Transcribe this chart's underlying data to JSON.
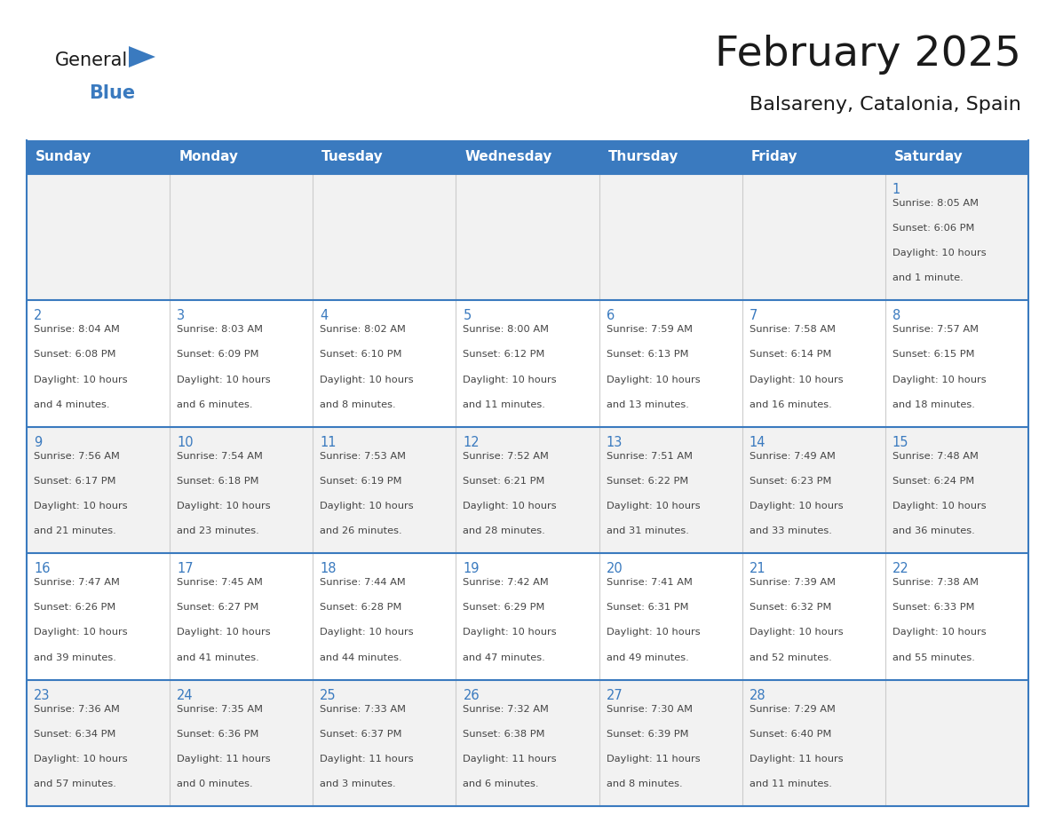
{
  "title": "February 2025",
  "subtitle": "Balsareny, Catalonia, Spain",
  "days_of_week": [
    "Sunday",
    "Monday",
    "Tuesday",
    "Wednesday",
    "Thursday",
    "Friday",
    "Saturday"
  ],
  "header_bg_color": "#3a7abf",
  "header_text_color": "#ffffff",
  "border_color": "#3a7abf",
  "row_border_color": "#4a90d0",
  "day_num_color": "#3a7abf",
  "text_color": "#444444",
  "title_color": "#1a1a1a",
  "weeks": [
    [
      {
        "day": null,
        "info": null
      },
      {
        "day": null,
        "info": null
      },
      {
        "day": null,
        "info": null
      },
      {
        "day": null,
        "info": null
      },
      {
        "day": null,
        "info": null
      },
      {
        "day": null,
        "info": null
      },
      {
        "day": 1,
        "info": "Sunrise: 8:05 AM\nSunset: 6:06 PM\nDaylight: 10 hours\nand 1 minute."
      }
    ],
    [
      {
        "day": 2,
        "info": "Sunrise: 8:04 AM\nSunset: 6:08 PM\nDaylight: 10 hours\nand 4 minutes."
      },
      {
        "day": 3,
        "info": "Sunrise: 8:03 AM\nSunset: 6:09 PM\nDaylight: 10 hours\nand 6 minutes."
      },
      {
        "day": 4,
        "info": "Sunrise: 8:02 AM\nSunset: 6:10 PM\nDaylight: 10 hours\nand 8 minutes."
      },
      {
        "day": 5,
        "info": "Sunrise: 8:00 AM\nSunset: 6:12 PM\nDaylight: 10 hours\nand 11 minutes."
      },
      {
        "day": 6,
        "info": "Sunrise: 7:59 AM\nSunset: 6:13 PM\nDaylight: 10 hours\nand 13 minutes."
      },
      {
        "day": 7,
        "info": "Sunrise: 7:58 AM\nSunset: 6:14 PM\nDaylight: 10 hours\nand 16 minutes."
      },
      {
        "day": 8,
        "info": "Sunrise: 7:57 AM\nSunset: 6:15 PM\nDaylight: 10 hours\nand 18 minutes."
      }
    ],
    [
      {
        "day": 9,
        "info": "Sunrise: 7:56 AM\nSunset: 6:17 PM\nDaylight: 10 hours\nand 21 minutes."
      },
      {
        "day": 10,
        "info": "Sunrise: 7:54 AM\nSunset: 6:18 PM\nDaylight: 10 hours\nand 23 minutes."
      },
      {
        "day": 11,
        "info": "Sunrise: 7:53 AM\nSunset: 6:19 PM\nDaylight: 10 hours\nand 26 minutes."
      },
      {
        "day": 12,
        "info": "Sunrise: 7:52 AM\nSunset: 6:21 PM\nDaylight: 10 hours\nand 28 minutes."
      },
      {
        "day": 13,
        "info": "Sunrise: 7:51 AM\nSunset: 6:22 PM\nDaylight: 10 hours\nand 31 minutes."
      },
      {
        "day": 14,
        "info": "Sunrise: 7:49 AM\nSunset: 6:23 PM\nDaylight: 10 hours\nand 33 minutes."
      },
      {
        "day": 15,
        "info": "Sunrise: 7:48 AM\nSunset: 6:24 PM\nDaylight: 10 hours\nand 36 minutes."
      }
    ],
    [
      {
        "day": 16,
        "info": "Sunrise: 7:47 AM\nSunset: 6:26 PM\nDaylight: 10 hours\nand 39 minutes."
      },
      {
        "day": 17,
        "info": "Sunrise: 7:45 AM\nSunset: 6:27 PM\nDaylight: 10 hours\nand 41 minutes."
      },
      {
        "day": 18,
        "info": "Sunrise: 7:44 AM\nSunset: 6:28 PM\nDaylight: 10 hours\nand 44 minutes."
      },
      {
        "day": 19,
        "info": "Sunrise: 7:42 AM\nSunset: 6:29 PM\nDaylight: 10 hours\nand 47 minutes."
      },
      {
        "day": 20,
        "info": "Sunrise: 7:41 AM\nSunset: 6:31 PM\nDaylight: 10 hours\nand 49 minutes."
      },
      {
        "day": 21,
        "info": "Sunrise: 7:39 AM\nSunset: 6:32 PM\nDaylight: 10 hours\nand 52 minutes."
      },
      {
        "day": 22,
        "info": "Sunrise: 7:38 AM\nSunset: 6:33 PM\nDaylight: 10 hours\nand 55 minutes."
      }
    ],
    [
      {
        "day": 23,
        "info": "Sunrise: 7:36 AM\nSunset: 6:34 PM\nDaylight: 10 hours\nand 57 minutes."
      },
      {
        "day": 24,
        "info": "Sunrise: 7:35 AM\nSunset: 6:36 PM\nDaylight: 11 hours\nand 0 minutes."
      },
      {
        "day": 25,
        "info": "Sunrise: 7:33 AM\nSunset: 6:37 PM\nDaylight: 11 hours\nand 3 minutes."
      },
      {
        "day": 26,
        "info": "Sunrise: 7:32 AM\nSunset: 6:38 PM\nDaylight: 11 hours\nand 6 minutes."
      },
      {
        "day": 27,
        "info": "Sunrise: 7:30 AM\nSunset: 6:39 PM\nDaylight: 11 hours\nand 8 minutes."
      },
      {
        "day": 28,
        "info": "Sunrise: 7:29 AM\nSunset: 6:40 PM\nDaylight: 11 hours\nand 11 minutes."
      },
      {
        "day": null,
        "info": null
      }
    ]
  ],
  "logo_color1": "#1a1a1a",
  "logo_color2": "#3a7abf",
  "logo_triangle_color": "#3a7abf"
}
